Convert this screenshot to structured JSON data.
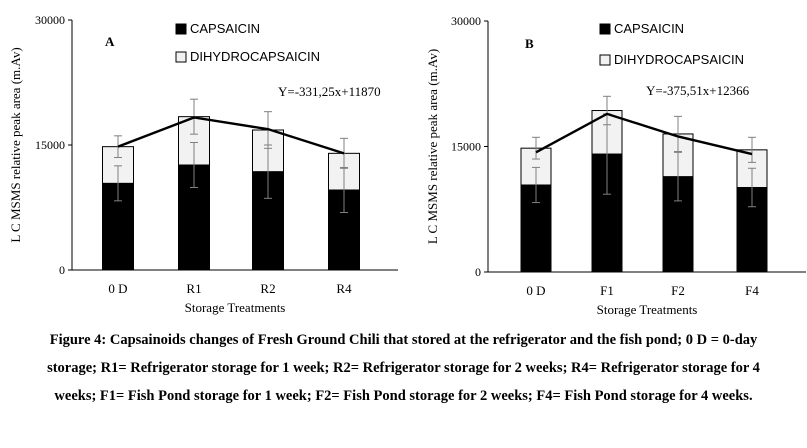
{
  "caption": "Figure 4: Capsainoids changes of Fresh Ground Chili that stored at the refrigerator and the fish pond; 0 D = 0-day storage; R1= Refrigerator storage for 1 week; R2= Refrigerator storage for 2 weeks; R4= Refrigerator storage for 4 weeks; F1= Fish Pond storage for 1 week; F2= Fish Pond storage for 2 weeks; F4= Fish Pond storage for 4 weeks.",
  "chart_data": [
    {
      "type": "bar",
      "stacked": true,
      "panel_label": "A",
      "categories": [
        "0 D",
        "R1",
        "R2",
        "R4"
      ],
      "series": [
        {
          "name": "CAPSAICIN",
          "color": "#000000",
          "values": [
            10400,
            12600,
            11800,
            9600
          ],
          "error": [
            2100,
            2700,
            3200,
            2700
          ]
        },
        {
          "name": "DIHYDROCAPSAICIN",
          "color": "#f2f2f2",
          "values": [
            4400,
            5800,
            5000,
            4400
          ],
          "error": [
            1300,
            2100,
            2200,
            1800
          ]
        }
      ],
      "trendline": {
        "label": "Y=-331,25x+11870",
        "values": [
          14800,
          18300,
          16900,
          14000
        ]
      },
      "xlabel": "Storage Treatments",
      "ylabel": "L C MSMS relative peak area (m.Av)",
      "ylim": [
        0,
        30000
      ],
      "yticks": [
        "0",
        "15000",
        "30000"
      ],
      "legend_position": "top"
    },
    {
      "type": "bar",
      "stacked": true,
      "panel_label": "B",
      "categories": [
        "0 D",
        "F1",
        "F2",
        "F4"
      ],
      "series": [
        {
          "name": "CAPSAICIN",
          "color": "#000000",
          "values": [
            10400,
            14100,
            11400,
            10100
          ],
          "error": [
            2100,
            4800,
            2900,
            2300
          ]
        },
        {
          "name": "DIHYDROCAPSAICIN",
          "color": "#f2f2f2",
          "values": [
            4400,
            5200,
            5100,
            4500
          ],
          "error": [
            1300,
            1700,
            2100,
            1500
          ]
        }
      ],
      "trendline": {
        "label": "Y=-375,51x+12366",
        "values": [
          14300,
          18900,
          16200,
          14100
        ]
      },
      "xlabel": "Storage Treatments",
      "ylabel": "L C MSMS relative peak area (m.Av)",
      "ylim": [
        0,
        30000
      ],
      "yticks": [
        "0",
        "15000",
        "30000"
      ],
      "legend_position": "top"
    }
  ]
}
